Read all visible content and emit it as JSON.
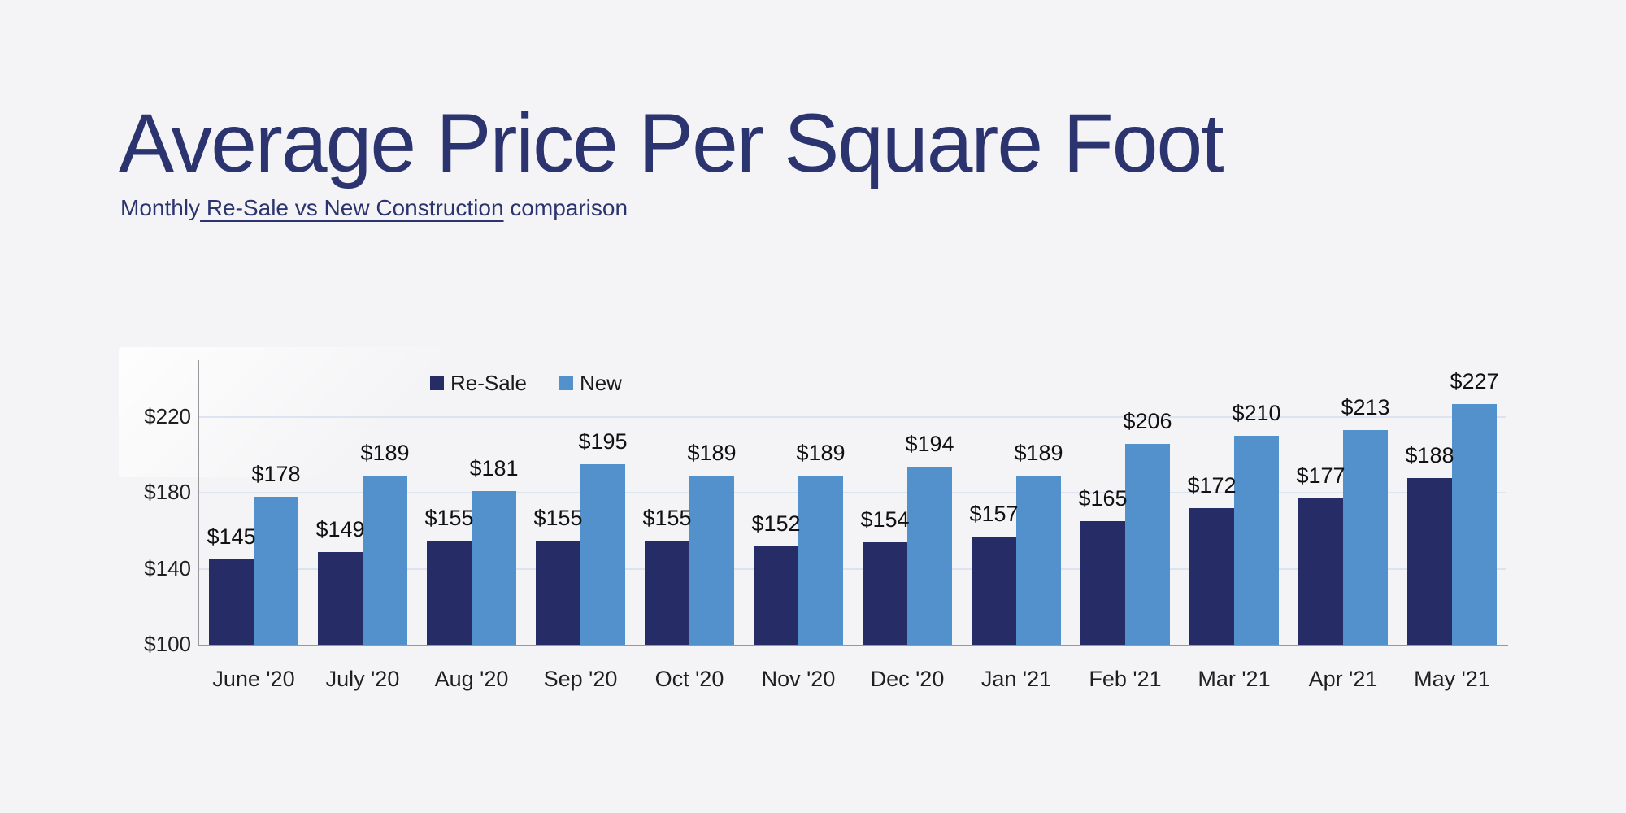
{
  "page": {
    "background": "#f4f4f6"
  },
  "header": {
    "title": "Average Price Per Square Foot",
    "subtitle_prefix": "Monthly",
    "subtitle_underlined": " Re-Sale vs New Construction",
    "subtitle_suffix": " comparison"
  },
  "chart_data": {
    "type": "bar",
    "title": "Average Price Per Square Foot",
    "subtitle": "Monthly Re-Sale vs New Construction comparison",
    "categories": [
      "June '20",
      "July '20",
      "Aug '20",
      "Sep '20",
      "Oct '20",
      "Nov '20",
      "Dec '20",
      "Jan '21",
      "Feb '21",
      "Mar '21",
      "Apr '21",
      "May '21"
    ],
    "series": [
      {
        "name": "Re-Sale",
        "color": "#262c66",
        "values": [
          145,
          149,
          155,
          155,
          155,
          152,
          154,
          157,
          165,
          172,
          177,
          188
        ]
      },
      {
        "name": "New",
        "color": "#5291cc",
        "values": [
          178,
          189,
          181,
          195,
          189,
          189,
          194,
          189,
          206,
          210,
          213,
          227
        ]
      }
    ],
    "value_prefix": "$",
    "yticks": [
      100,
      140,
      180,
      220
    ],
    "ylim": [
      100,
      250
    ],
    "grid": true,
    "legend_position": "top",
    "colors": {
      "gridline": "#dde3f0",
      "axis": "#97979d",
      "tick_label": "#1f1f1f",
      "value_label": "#111111",
      "title": "#2c3470"
    }
  }
}
